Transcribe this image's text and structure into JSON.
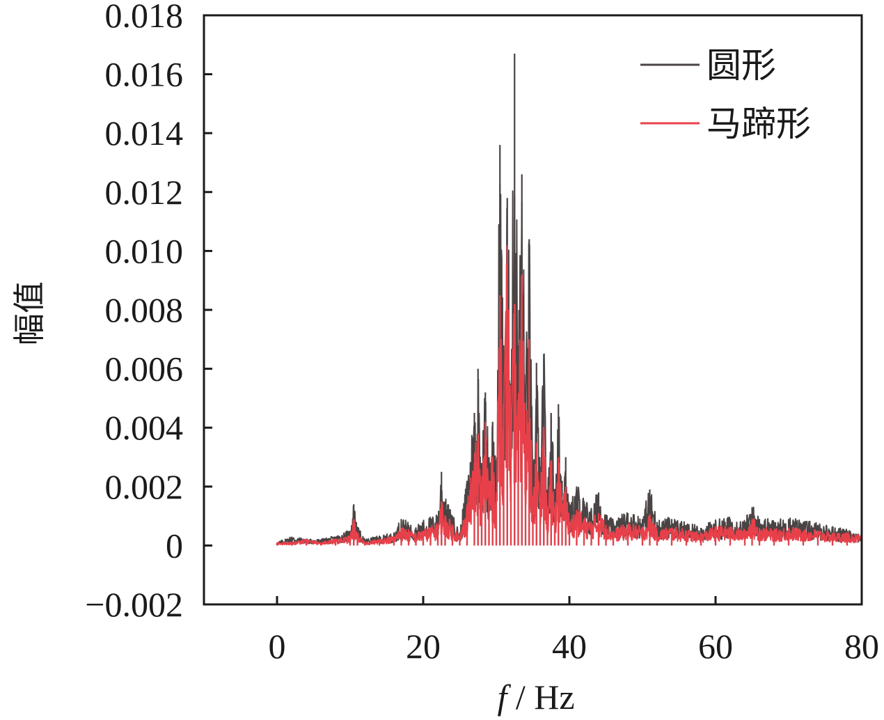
{
  "chart_data": {
    "type": "line",
    "xlabel_italic": "f",
    "xlabel_unit": " / Hz",
    "ylabel": "幅值",
    "xlim": [
      -10,
      80
    ],
    "ylim": [
      -0.002,
      0.018
    ],
    "xticks": [
      "0",
      "20",
      "40",
      "60",
      "80"
    ],
    "xtick_values": [
      0,
      20,
      40,
      60,
      80
    ],
    "yticks": [
      "−0.002",
      "0",
      "0.002",
      "0.004",
      "0.006",
      "0.008",
      "0.010",
      "0.012",
      "0.014",
      "0.016",
      "0.018"
    ],
    "ytick_values": [
      -0.002,
      0,
      0.002,
      0.004,
      0.006,
      0.008,
      0.01,
      0.012,
      0.014,
      0.016,
      0.018
    ],
    "legend_position": "top-right",
    "series": [
      {
        "name": "圆形",
        "color": "#4a4444",
        "x": [
          0,
          2,
          4,
          6,
          8,
          10,
          10.5,
          11,
          12,
          14,
          16,
          17,
          18,
          19,
          20,
          21,
          22,
          22.5,
          23,
          24,
          25,
          26,
          27,
          27.5,
          28,
          28.5,
          29,
          29.5,
          30,
          30.5,
          31,
          31.5,
          32,
          32.5,
          33,
          33.5,
          34,
          34.5,
          35,
          35.5,
          36,
          36.5,
          37,
          37.5,
          38,
          38.5,
          39,
          39.5,
          40,
          41,
          42,
          43,
          44,
          45,
          46,
          48,
          50,
          51,
          52,
          54,
          56,
          58,
          60,
          62,
          64,
          65,
          66,
          68,
          70,
          72,
          74,
          76,
          78,
          80
        ],
        "y": [
          0.0001,
          0.0003,
          0.0002,
          0.0002,
          0.0003,
          0.0005,
          0.0014,
          0.0006,
          0.0002,
          0.0003,
          0.0004,
          0.0009,
          0.0007,
          0.0006,
          0.0008,
          0.0009,
          0.001,
          0.0025,
          0.0015,
          0.001,
          0.0004,
          0.0022,
          0.0045,
          0.006,
          0.0028,
          0.0052,
          0.003,
          0.0042,
          0.0025,
          0.0136,
          0.0065,
          0.0118,
          0.0055,
          0.0167,
          0.0068,
          0.0126,
          0.0052,
          0.0104,
          0.0018,
          0.0062,
          0.0024,
          0.0065,
          0.0016,
          0.0045,
          0.0018,
          0.0048,
          0.0022,
          0.003,
          0.0012,
          0.002,
          0.0015,
          0.0012,
          0.0018,
          0.001,
          0.0008,
          0.0011,
          0.0009,
          0.0019,
          0.0008,
          0.0009,
          0.0007,
          0.0006,
          0.0008,
          0.0009,
          0.0008,
          0.0013,
          0.0009,
          0.0008,
          0.0009,
          0.0008,
          0.0007,
          0.0006,
          0.0005,
          0.0004
        ]
      },
      {
        "name": "马蹄形",
        "color": "#e8404a",
        "x": [
          0,
          2,
          4,
          6,
          8,
          10,
          10.5,
          11,
          12,
          14,
          16,
          17,
          18,
          19,
          20,
          21,
          22,
          22.5,
          23,
          24,
          25,
          26,
          27,
          27.5,
          28,
          28.5,
          29,
          29.5,
          30,
          30.5,
          31,
          31.5,
          32,
          32.5,
          33,
          33.5,
          34,
          34.5,
          35,
          35.5,
          36,
          36.5,
          37,
          37.5,
          38,
          38.5,
          39,
          39.5,
          40,
          41,
          42,
          43,
          44,
          45,
          46,
          48,
          50,
          51,
          52,
          54,
          56,
          58,
          60,
          62,
          64,
          65,
          66,
          68,
          70,
          72,
          74,
          76,
          78,
          80
        ],
        "y": [
          0.0001,
          0.0001,
          0.0002,
          0.0001,
          0.0002,
          0.0003,
          0.0009,
          0.0004,
          0.0001,
          0.0002,
          0.0003,
          0.0006,
          0.0005,
          0.0004,
          0.0005,
          0.0006,
          0.0007,
          0.0015,
          0.001,
          0.0007,
          0.0003,
          0.0014,
          0.0028,
          0.0038,
          0.002,
          0.0042,
          0.0022,
          0.003,
          0.0018,
          0.0085,
          0.0048,
          0.0102,
          0.004,
          0.0082,
          0.0045,
          0.0092,
          0.0035,
          0.007,
          0.0012,
          0.0035,
          0.0015,
          0.004,
          0.001,
          0.0028,
          0.0012,
          0.003,
          0.0014,
          0.002,
          0.0008,
          0.0012,
          0.0009,
          0.0008,
          0.0011,
          0.0007,
          0.0005,
          0.0007,
          0.0006,
          0.001,
          0.0005,
          0.0006,
          0.0005,
          0.0004,
          0.0006,
          0.0006,
          0.0005,
          0.0009,
          0.0006,
          0.0005,
          0.0006,
          0.0005,
          0.0005,
          0.0004,
          0.0004,
          0.0003
        ]
      }
    ]
  }
}
